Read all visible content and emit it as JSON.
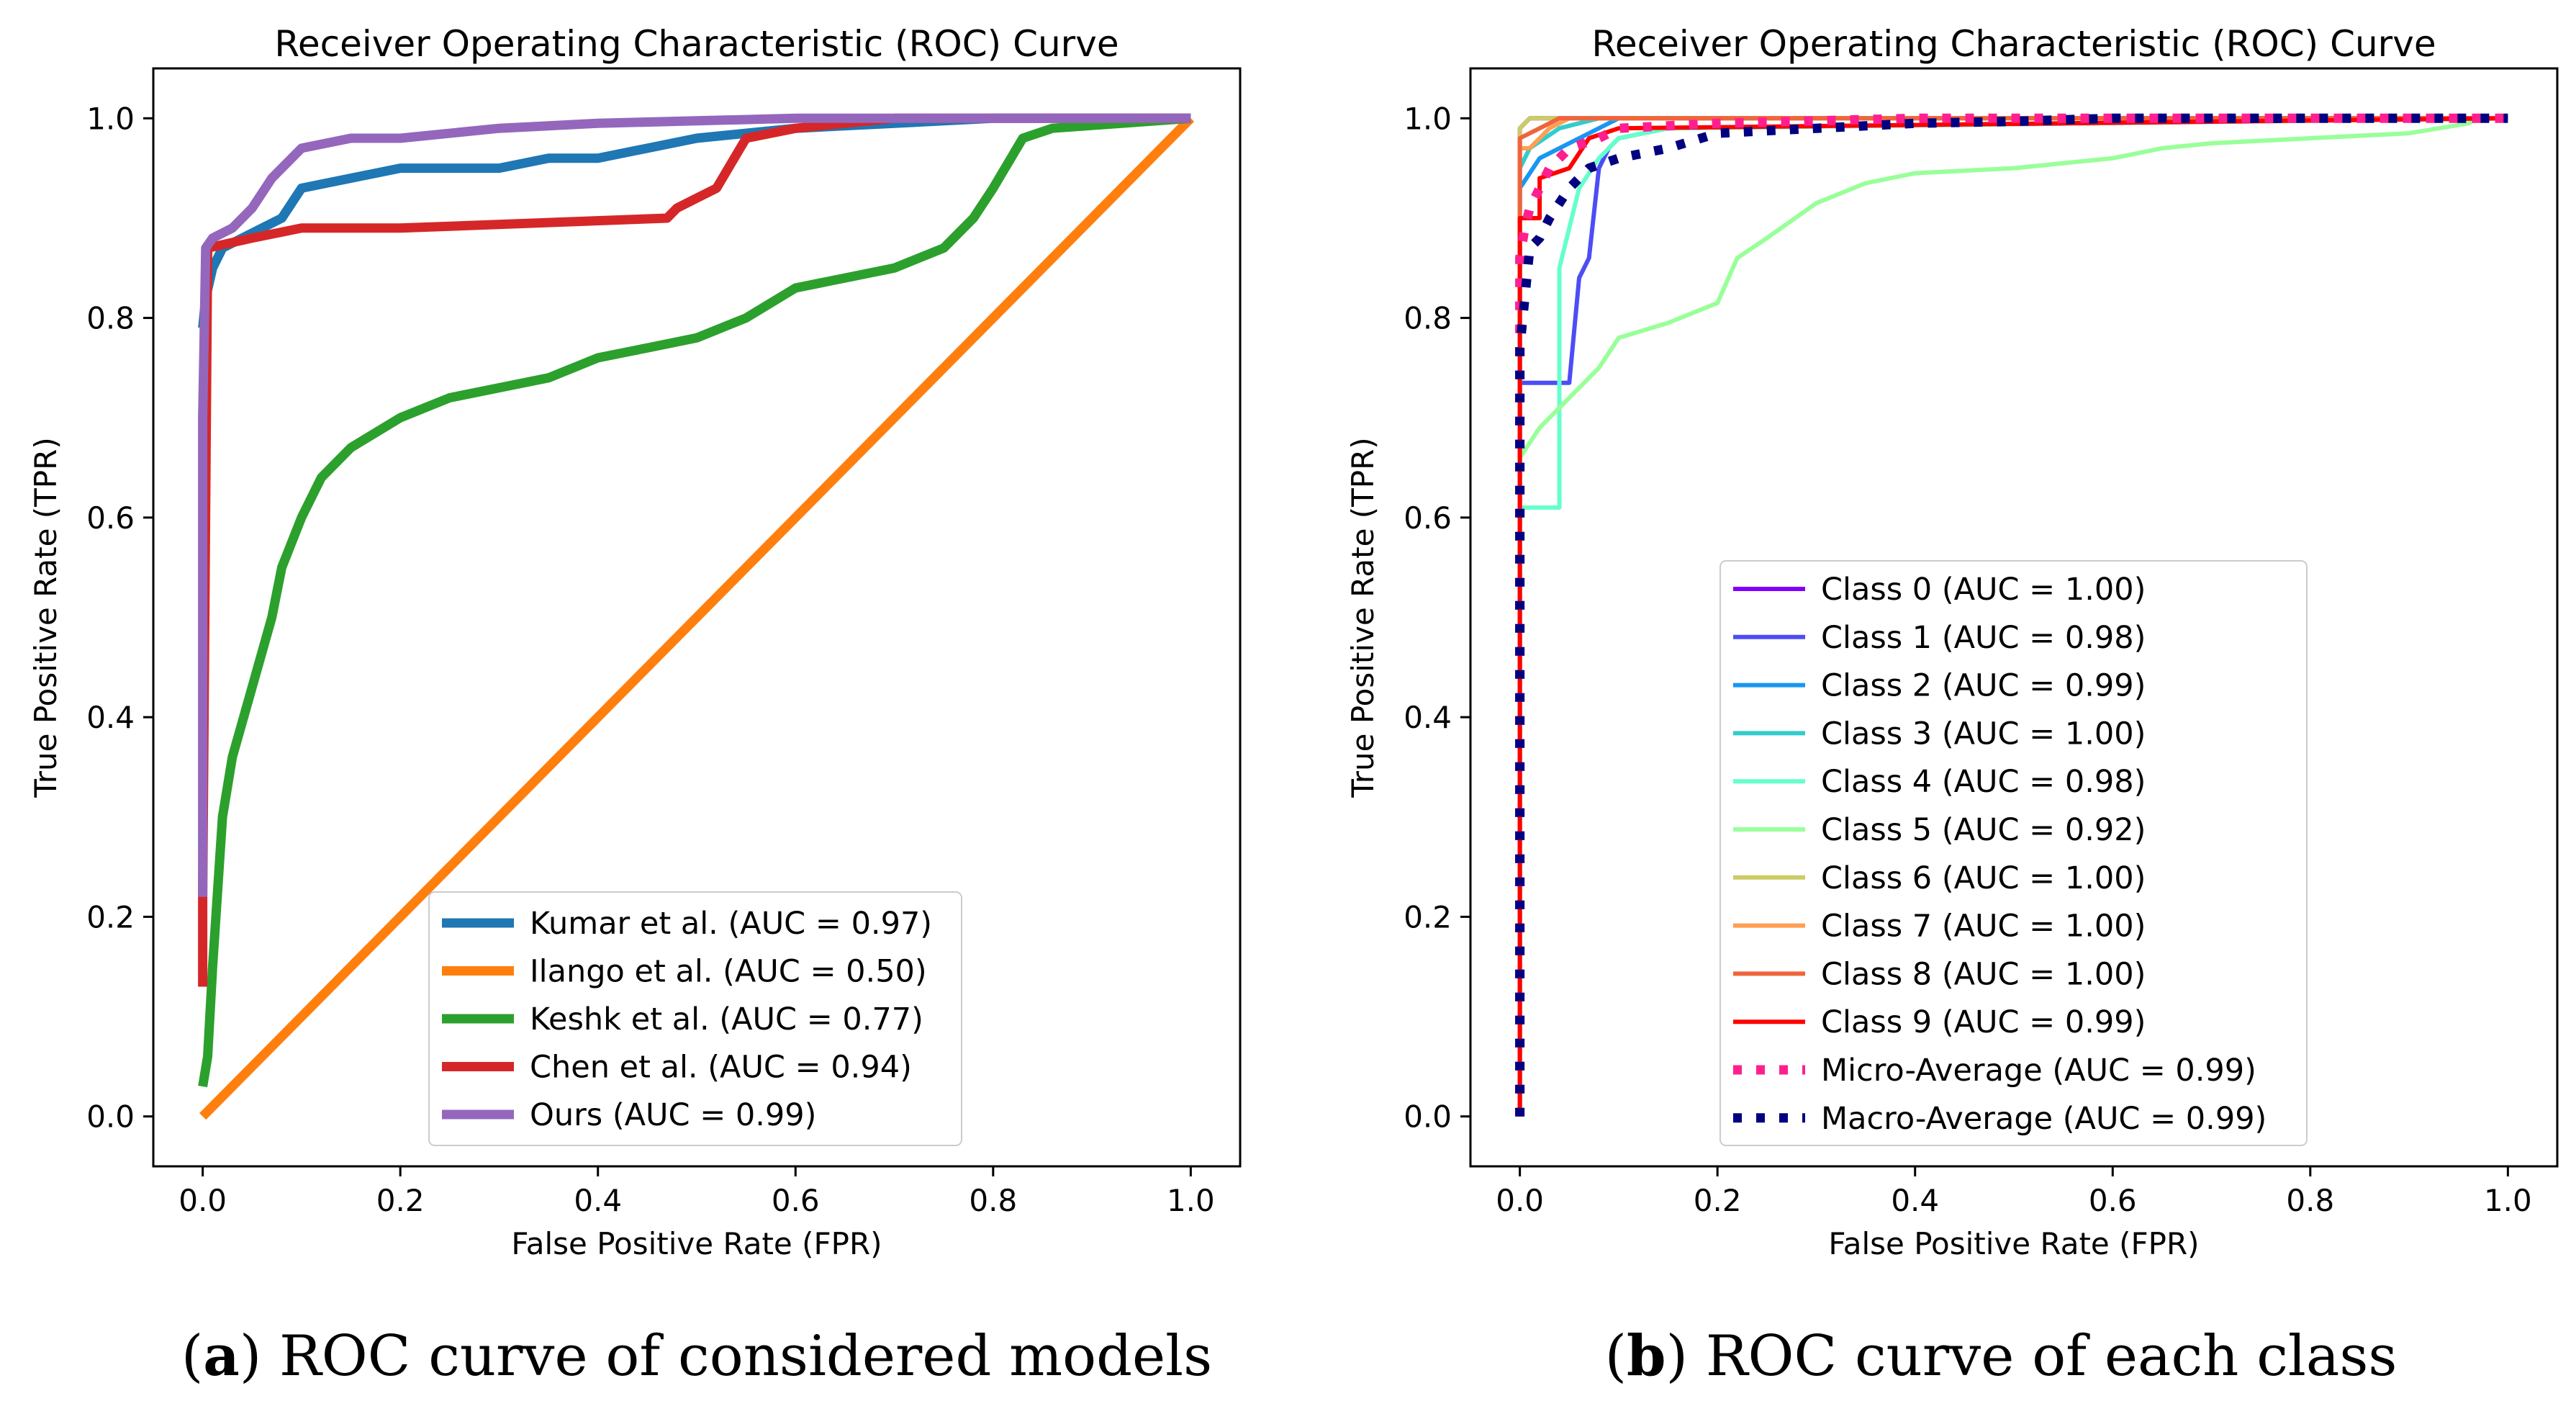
{
  "chart_data": [
    {
      "id": "a",
      "type": "line",
      "title": "Receiver Operating Characteristic (ROC) Curve",
      "xlabel": "False Positive Rate (FPR)",
      "ylabel": "True Positive Rate (TPR)",
      "xlim": [
        -0.05,
        1.05
      ],
      "ylim": [
        -0.05,
        1.05
      ],
      "xticks": [
        "0.0",
        "0.2",
        "0.4",
        "0.6",
        "0.8",
        "1.0"
      ],
      "yticks": [
        "0.0",
        "0.2",
        "0.4",
        "0.6",
        "0.8",
        "1.0"
      ],
      "legend_position": "lower-right",
      "caption_letter": "a",
      "caption_text": " ROC curve of considered models",
      "series": [
        {
          "name": "Kumar et al. (AUC = 0.97)",
          "color": "#1f77b4",
          "dash": "solid",
          "x": [
            0.0,
            0.003,
            0.01,
            0.02,
            0.04,
            0.06,
            0.08,
            0.1,
            0.15,
            0.2,
            0.3,
            0.35,
            0.4,
            0.5,
            0.6,
            0.8,
            1.0
          ],
          "y": [
            0.79,
            0.82,
            0.85,
            0.87,
            0.88,
            0.89,
            0.9,
            0.93,
            0.94,
            0.95,
            0.95,
            0.96,
            0.96,
            0.98,
            0.99,
            1.0,
            1.0
          ]
        },
        {
          "name": "Ilango et al. (AUC = 0.50)",
          "color": "#ff7f0e",
          "dash": "solid",
          "x": [
            0.0,
            0.25,
            0.5,
            0.75,
            1.0
          ],
          "y": [
            0.0,
            0.25,
            0.5,
            0.75,
            1.0
          ]
        },
        {
          "name": "Keshk et al. (AUC = 0.77)",
          "color": "#2ca02c",
          "dash": "solid",
          "x": [
            0.0,
            0.005,
            0.01,
            0.02,
            0.03,
            0.05,
            0.07,
            0.08,
            0.1,
            0.12,
            0.15,
            0.2,
            0.25,
            0.3,
            0.35,
            0.4,
            0.45,
            0.5,
            0.55,
            0.6,
            0.7,
            0.75,
            0.78,
            0.8,
            0.83,
            0.86,
            1.0
          ],
          "y": [
            0.03,
            0.06,
            0.15,
            0.3,
            0.36,
            0.43,
            0.5,
            0.55,
            0.6,
            0.64,
            0.67,
            0.7,
            0.72,
            0.73,
            0.74,
            0.76,
            0.77,
            0.78,
            0.8,
            0.83,
            0.85,
            0.87,
            0.9,
            0.93,
            0.98,
            0.99,
            1.0
          ]
        },
        {
          "name": "Chen et al. (AUC = 0.94)",
          "color": "#d62728",
          "dash": "solid",
          "x": [
            0.0,
            0.0,
            0.005,
            0.05,
            0.1,
            0.2,
            0.47,
            0.48,
            0.5,
            0.52,
            0.55,
            0.6,
            0.7,
            1.0
          ],
          "y": [
            0.13,
            0.22,
            0.87,
            0.88,
            0.89,
            0.89,
            0.9,
            0.91,
            0.92,
            0.93,
            0.98,
            0.99,
            1.0,
            1.0
          ]
        },
        {
          "name": "Ours (AUC = 0.99)",
          "color": "#9467bd",
          "dash": "solid",
          "x": [
            0.0,
            0.0,
            0.003,
            0.01,
            0.03,
            0.05,
            0.07,
            0.1,
            0.15,
            0.2,
            0.3,
            0.4,
            0.6,
            0.8,
            1.0
          ],
          "y": [
            0.22,
            0.7,
            0.87,
            0.88,
            0.89,
            0.91,
            0.94,
            0.97,
            0.98,
            0.98,
            0.99,
            0.995,
            1.0,
            1.0,
            1.0
          ]
        }
      ]
    },
    {
      "id": "b",
      "type": "line",
      "title": "Receiver Operating Characteristic (ROC) Curve",
      "xlabel": "False Positive Rate (FPR)",
      "ylabel": "True Positive Rate (TPR)",
      "xlim": [
        -0.05,
        1.05
      ],
      "ylim": [
        -0.05,
        1.05
      ],
      "xticks": [
        "0.0",
        "0.2",
        "0.4",
        "0.6",
        "0.8",
        "1.0"
      ],
      "yticks": [
        "0.0",
        "0.2",
        "0.4",
        "0.6",
        "0.8",
        "1.0"
      ],
      "legend_position": "center",
      "caption_letter": "b",
      "caption_text": " ROC curve of each class",
      "series": [
        {
          "name": "Class 0 (AUC = 1.00)",
          "color": "#8000ff",
          "dash": "solid",
          "x": [
            0.0,
            0.0,
            0.01,
            1.0
          ],
          "y": [
            0.0,
            0.99,
            1.0,
            1.0
          ]
        },
        {
          "name": "Class 1 (AUC = 0.98)",
          "color": "#4d4df5",
          "dash": "solid",
          "x": [
            0.0,
            0.0,
            0.05,
            0.06,
            0.07,
            0.08,
            0.09,
            0.1,
            0.15,
            1.0
          ],
          "y": [
            0.0,
            0.735,
            0.735,
            0.84,
            0.86,
            0.95,
            0.97,
            0.98,
            0.99,
            1.0
          ]
        },
        {
          "name": "Class 2 (AUC = 0.99)",
          "color": "#1996f3",
          "dash": "solid",
          "x": [
            0.0,
            0.0,
            0.02,
            0.06,
            0.1,
            1.0
          ],
          "y": [
            0.0,
            0.93,
            0.96,
            0.98,
            1.0,
            1.0
          ]
        },
        {
          "name": "Class 3 (AUC = 1.00)",
          "color": "#33cccc",
          "dash": "solid",
          "x": [
            0.0,
            0.0,
            0.01,
            0.04,
            0.08,
            1.0
          ],
          "y": [
            0.0,
            0.95,
            0.97,
            0.99,
            1.0,
            1.0
          ]
        },
        {
          "name": "Class 4 (AUC = 0.98)",
          "color": "#66ffcc",
          "dash": "solid",
          "x": [
            0.0,
            0.0,
            0.04,
            0.04,
            0.06,
            0.08,
            0.1,
            0.15,
            1.0
          ],
          "y": [
            0.0,
            0.61,
            0.61,
            0.85,
            0.93,
            0.96,
            0.98,
            0.99,
            1.0
          ]
        },
        {
          "name": "Class 5 (AUC = 0.92)",
          "color": "#99ff99",
          "dash": "solid",
          "x": [
            0.0,
            0.0,
            0.02,
            0.05,
            0.08,
            0.1,
            0.15,
            0.2,
            0.22,
            0.25,
            0.3,
            0.35,
            0.4,
            0.5,
            0.6,
            0.65,
            0.7,
            0.8,
            0.9,
            0.96,
            0.97,
            1.0
          ],
          "y": [
            0.0,
            0.66,
            0.69,
            0.72,
            0.75,
            0.78,
            0.795,
            0.815,
            0.86,
            0.88,
            0.915,
            0.935,
            0.945,
            0.95,
            0.96,
            0.97,
            0.975,
            0.98,
            0.985,
            0.995,
            1.0,
            1.0
          ]
        },
        {
          "name": "Class 6 (AUC = 1.00)",
          "color": "#cccc66",
          "dash": "solid",
          "x": [
            0.0,
            0.0,
            0.01,
            1.0
          ],
          "y": [
            0.0,
            0.99,
            1.0,
            1.0
          ]
        },
        {
          "name": "Class 7 (AUC = 1.00)",
          "color": "#ff9f52",
          "dash": "solid",
          "x": [
            0.0,
            0.0,
            0.01,
            0.03,
            0.05,
            1.0
          ],
          "y": [
            0.0,
            0.97,
            0.97,
            0.99,
            1.0,
            1.0
          ]
        },
        {
          "name": "Class 8 (AUC = 1.00)",
          "color": "#f0643c",
          "dash": "solid",
          "x": [
            0.0,
            0.0,
            0.02,
            0.04,
            1.0
          ],
          "y": [
            0.0,
            0.98,
            0.99,
            1.0,
            1.0
          ]
        },
        {
          "name": "Class 9 (AUC = 0.99)",
          "color": "#ff0000",
          "dash": "solid",
          "x": [
            0.0,
            0.0,
            0.02,
            0.02,
            0.05,
            0.07,
            0.1,
            1.0
          ],
          "y": [
            0.0,
            0.9,
            0.9,
            0.94,
            0.95,
            0.98,
            0.99,
            1.0
          ]
        },
        {
          "name": "Micro-Average (AUC = 0.99)",
          "color": "#ff1f8f",
          "dash": "dotted",
          "x": [
            0.0,
            0.0,
            0.005,
            0.01,
            0.02,
            0.03,
            0.05,
            0.08,
            0.1,
            0.2,
            0.4,
            0.6,
            1.0
          ],
          "y": [
            0.0,
            0.86,
            0.89,
            0.91,
            0.93,
            0.95,
            0.97,
            0.98,
            0.99,
            0.995,
            1.0,
            1.0,
            1.0
          ]
        },
        {
          "name": "Macro-Average (AUC = 0.99)",
          "color": "#000080",
          "dash": "dotted",
          "x": [
            0.0,
            0.0,
            0.005,
            0.01,
            0.02,
            0.03,
            0.05,
            0.07,
            0.1,
            0.15,
            0.2,
            0.3,
            0.4,
            0.5,
            0.6,
            0.8,
            0.9,
            1.0
          ],
          "y": [
            0.0,
            0.77,
            0.82,
            0.87,
            0.88,
            0.9,
            0.93,
            0.95,
            0.96,
            0.97,
            0.985,
            0.99,
            0.995,
            0.997,
            1.0,
            1.0,
            1.0,
            1.0
          ]
        }
      ]
    }
  ]
}
